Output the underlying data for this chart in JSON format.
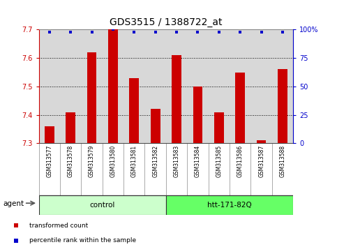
{
  "title": "GDS3515 / 1388722_at",
  "samples": [
    "GSM313577",
    "GSM313578",
    "GSM313579",
    "GSM313580",
    "GSM313581",
    "GSM313582",
    "GSM313583",
    "GSM313584",
    "GSM313585",
    "GSM313586",
    "GSM313587",
    "GSM313588"
  ],
  "bar_values": [
    7.36,
    7.41,
    7.62,
    7.7,
    7.53,
    7.42,
    7.61,
    7.5,
    7.41,
    7.55,
    7.31,
    7.56
  ],
  "percentile_values": [
    98,
    98,
    98,
    100,
    98,
    98,
    98,
    98,
    98,
    98,
    98,
    98
  ],
  "bar_color": "#cc0000",
  "dot_color": "#0000cc",
  "ymin": 7.3,
  "ymax": 7.7,
  "yticks": [
    7.3,
    7.4,
    7.5,
    7.6,
    7.7
  ],
  "right_yticks": [
    0,
    25,
    50,
    75,
    100
  ],
  "right_yticklabels": [
    "0",
    "25",
    "50",
    "75",
    "100%"
  ],
  "groups": [
    {
      "label": "control",
      "start": 0,
      "end": 6,
      "color": "#ccffcc"
    },
    {
      "label": "htt-171-82Q",
      "start": 6,
      "end": 12,
      "color": "#66ff66"
    }
  ],
  "agent_label": "agent",
  "legend_items": [
    {
      "label": "transformed count",
      "color": "#cc0000",
      "marker": "s"
    },
    {
      "label": "percentile rank within the sample",
      "color": "#0000cc",
      "marker": "s"
    }
  ],
  "title_fontsize": 10,
  "tick_fontsize": 7,
  "label_fontsize": 7.5,
  "sample_fontsize": 5.5,
  "background_color": "#ffffff",
  "plot_bg_color": "#d8d8d8",
  "bar_width": 0.45,
  "dotted_grid_color": "#000000"
}
